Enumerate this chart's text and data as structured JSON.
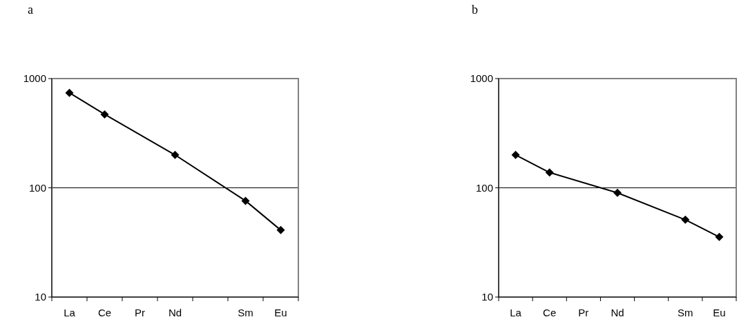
{
  "chart_data": [
    {
      "type": "line",
      "title": "a",
      "categories": [
        "La",
        "Ce",
        "Pr",
        "Nd",
        null,
        "Sm",
        "Eu"
      ],
      "series": [
        {
          "color": "#000000",
          "values": [
            740,
            470,
            null,
            200,
            null,
            76,
            41
          ]
        }
      ],
      "log": true,
      "ylim": [
        10,
        1000
      ],
      "yticks": [
        10,
        100,
        1000
      ],
      "grid": "y",
      "marker": "diamond"
    },
    {
      "type": "line",
      "title": "b",
      "categories": [
        "La",
        "Ce",
        "Pr",
        "Nd",
        null,
        "Sm",
        "Eu"
      ],
      "series": [
        {
          "color": "#000000",
          "values": [
            200,
            138,
            null,
            90,
            null,
            51,
            35.5
          ]
        }
      ],
      "log": true,
      "ylim": [
        10,
        1000
      ],
      "yticks": [
        10,
        100,
        1000
      ],
      "grid": "y",
      "marker": "diamond"
    }
  ]
}
